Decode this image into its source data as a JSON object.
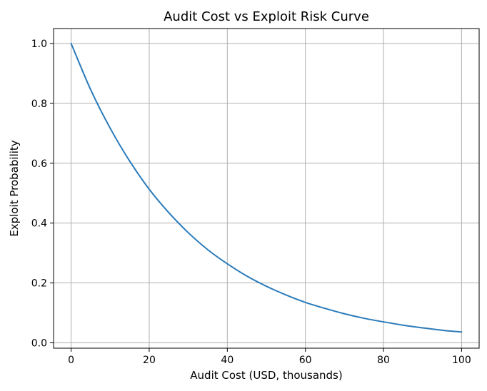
{
  "chart_data": {
    "type": "line",
    "title": "Audit Cost vs Exploit Risk Curve",
    "xlabel": "Audit Cost (USD, thousands)",
    "ylabel": "Exploit Probability",
    "xlim": [
      -4.5,
      104.5
    ],
    "ylim": [
      -0.018,
      1.05
    ],
    "xticks": [
      0,
      20,
      40,
      60,
      80,
      100
    ],
    "xtick_labels": [
      "0",
      "20",
      "40",
      "60",
      "80",
      "100"
    ],
    "yticks": [
      0.0,
      0.2,
      0.4,
      0.6,
      0.8,
      1.0
    ],
    "ytick_labels": [
      "0.0",
      "0.2",
      "0.4",
      "0.6",
      "0.8",
      "1.0"
    ],
    "grid": true,
    "series": [
      {
        "color": "#2b7bba",
        "x": [
          0,
          5,
          10,
          15,
          20,
          25,
          30,
          35,
          40,
          45,
          50,
          55,
          60,
          65,
          70,
          75,
          80,
          85,
          90,
          95,
          100
        ],
        "y": [
          1.0,
          0.846,
          0.717,
          0.607,
          0.513,
          0.435,
          0.368,
          0.311,
          0.264,
          0.223,
          0.189,
          0.16,
          0.135,
          0.115,
          0.097,
          0.082,
          0.07,
          0.059,
          0.05,
          0.042,
          0.036
        ]
      }
    ]
  }
}
